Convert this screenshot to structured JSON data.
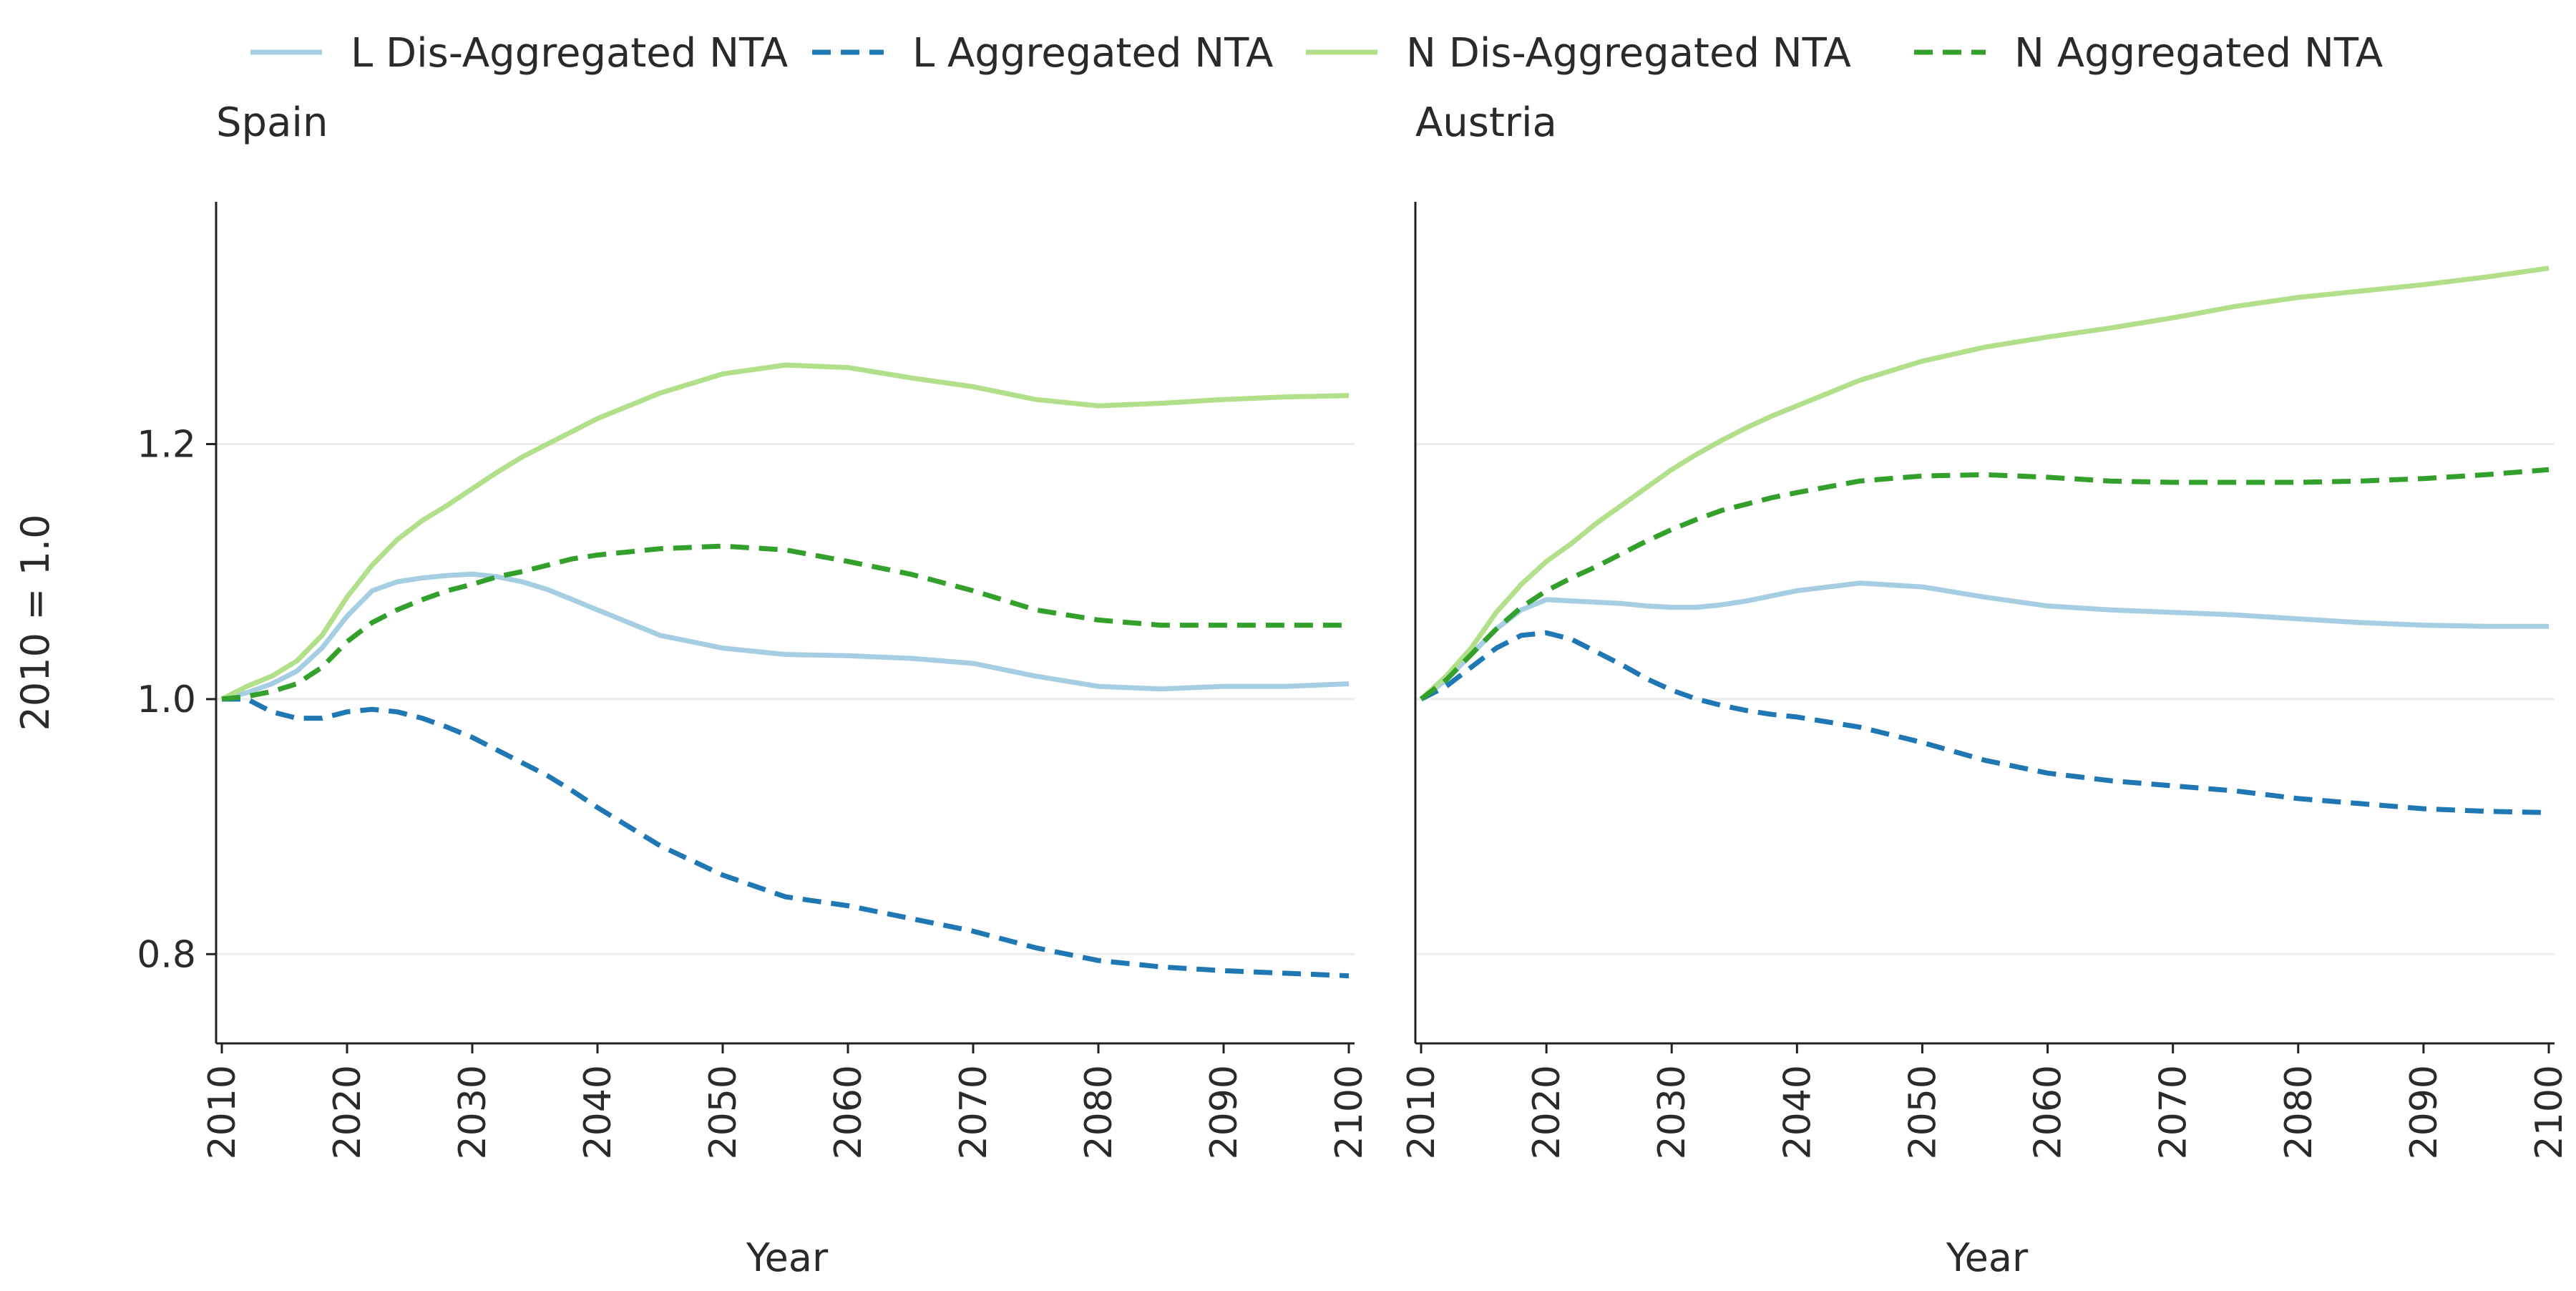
{
  "chart_data": {
    "type": "line",
    "ylabel": "2010 = 1.0",
    "xlabel": "Year",
    "xlim": [
      2010,
      2100
    ],
    "ylim": [
      0.73,
      1.39
    ],
    "x_ticks": [
      "2010",
      "2020",
      "2030",
      "2040",
      "2050",
      "2060",
      "2070",
      "2080",
      "2090",
      "2100"
    ],
    "y_ticks": [
      "0.8",
      "1.0",
      "1.2"
    ],
    "grid": "horizontal",
    "legend_position": "top",
    "legend": [
      {
        "name": "L Dis-Aggregated NTA",
        "color": "#a6cee3",
        "dash": "solid"
      },
      {
        "name": "L Aggregated NTA",
        "color": "#1f78b4",
        "dash": "dashed"
      },
      {
        "name": "N Dis-Aggregated NTA",
        "color": "#b2df8a",
        "dash": "solid"
      },
      {
        "name": "N Aggregated NTA",
        "color": "#33a02c",
        "dash": "dashed"
      }
    ],
    "panels": [
      {
        "title": "Spain",
        "x": [
          2010,
          2012,
          2014,
          2016,
          2018,
          2020,
          2022,
          2024,
          2026,
          2028,
          2030,
          2032,
          2034,
          2036,
          2038,
          2040,
          2045,
          2050,
          2055,
          2060,
          2065,
          2070,
          2075,
          2080,
          2085,
          2090,
          2095,
          2100
        ],
        "series": [
          {
            "name": "L Dis-Aggregated NTA",
            "values": [
              1.0,
              1.005,
              1.012,
              1.022,
              1.04,
              1.065,
              1.085,
              1.092,
              1.095,
              1.097,
              1.098,
              1.096,
              1.092,
              1.086,
              1.078,
              1.07,
              1.05,
              1.04,
              1.035,
              1.034,
              1.032,
              1.028,
              1.018,
              1.01,
              1.008,
              1.01,
              1.01,
              1.012
            ]
          },
          {
            "name": "L Aggregated NTA",
            "values": [
              1.0,
              1.0,
              0.99,
              0.985,
              0.985,
              0.99,
              0.992,
              0.99,
              0.985,
              0.978,
              0.97,
              0.96,
              0.95,
              0.94,
              0.928,
              0.915,
              0.885,
              0.862,
              0.845,
              0.838,
              0.828,
              0.818,
              0.805,
              0.795,
              0.79,
              0.787,
              0.785,
              0.783
            ]
          },
          {
            "name": "N Dis-Aggregated NTA",
            "values": [
              1.0,
              1.01,
              1.018,
              1.03,
              1.05,
              1.08,
              1.105,
              1.125,
              1.14,
              1.152,
              1.165,
              1.178,
              1.19,
              1.2,
              1.21,
              1.22,
              1.24,
              1.255,
              1.262,
              1.26,
              1.252,
              1.245,
              1.235,
              1.23,
              1.232,
              1.235,
              1.237,
              1.238
            ]
          },
          {
            "name": "N Aggregated NTA",
            "values": [
              1.0,
              1.002,
              1.006,
              1.012,
              1.025,
              1.045,
              1.06,
              1.07,
              1.078,
              1.085,
              1.09,
              1.096,
              1.1,
              1.105,
              1.11,
              1.113,
              1.118,
              1.12,
              1.117,
              1.108,
              1.098,
              1.085,
              1.07,
              1.062,
              1.058,
              1.058,
              1.058,
              1.058
            ]
          }
        ]
      },
      {
        "title": "Austria",
        "x": [
          2010,
          2012,
          2014,
          2016,
          2018,
          2020,
          2022,
          2024,
          2026,
          2028,
          2030,
          2032,
          2034,
          2036,
          2038,
          2040,
          2045,
          2050,
          2055,
          2060,
          2065,
          2070,
          2075,
          2080,
          2085,
          2090,
          2095,
          2100
        ],
        "series": [
          {
            "name": "L Dis-Aggregated NTA",
            "values": [
              1.0,
              1.015,
              1.035,
              1.055,
              1.07,
              1.078,
              1.077,
              1.076,
              1.075,
              1.073,
              1.072,
              1.072,
              1.074,
              1.077,
              1.081,
              1.085,
              1.091,
              1.088,
              1.08,
              1.073,
              1.07,
              1.068,
              1.066,
              1.063,
              1.06,
              1.058,
              1.057,
              1.057
            ]
          },
          {
            "name": "L Aggregated NTA",
            "values": [
              1.0,
              1.01,
              1.025,
              1.04,
              1.05,
              1.052,
              1.047,
              1.037,
              1.027,
              1.016,
              1.007,
              1.0,
              0.995,
              0.991,
              0.988,
              0.986,
              0.978,
              0.966,
              0.952,
              0.942,
              0.936,
              0.932,
              0.928,
              0.922,
              0.918,
              0.914,
              0.912,
              0.911
            ]
          },
          {
            "name": "N Dis-Aggregated NTA",
            "values": [
              1.0,
              1.018,
              1.04,
              1.068,
              1.09,
              1.108,
              1.122,
              1.138,
              1.152,
              1.166,
              1.18,
              1.192,
              1.203,
              1.213,
              1.222,
              1.23,
              1.25,
              1.265,
              1.276,
              1.284,
              1.291,
              1.299,
              1.308,
              1.315,
              1.32,
              1.325,
              1.331,
              1.338
            ]
          },
          {
            "name": "N Aggregated NTA",
            "values": [
              1.0,
              1.015,
              1.035,
              1.055,
              1.072,
              1.085,
              1.095,
              1.104,
              1.114,
              1.124,
              1.133,
              1.141,
              1.148,
              1.153,
              1.158,
              1.162,
              1.171,
              1.175,
              1.176,
              1.174,
              1.171,
              1.17,
              1.17,
              1.17,
              1.171,
              1.173,
              1.176,
              1.18
            ]
          }
        ]
      }
    ]
  }
}
